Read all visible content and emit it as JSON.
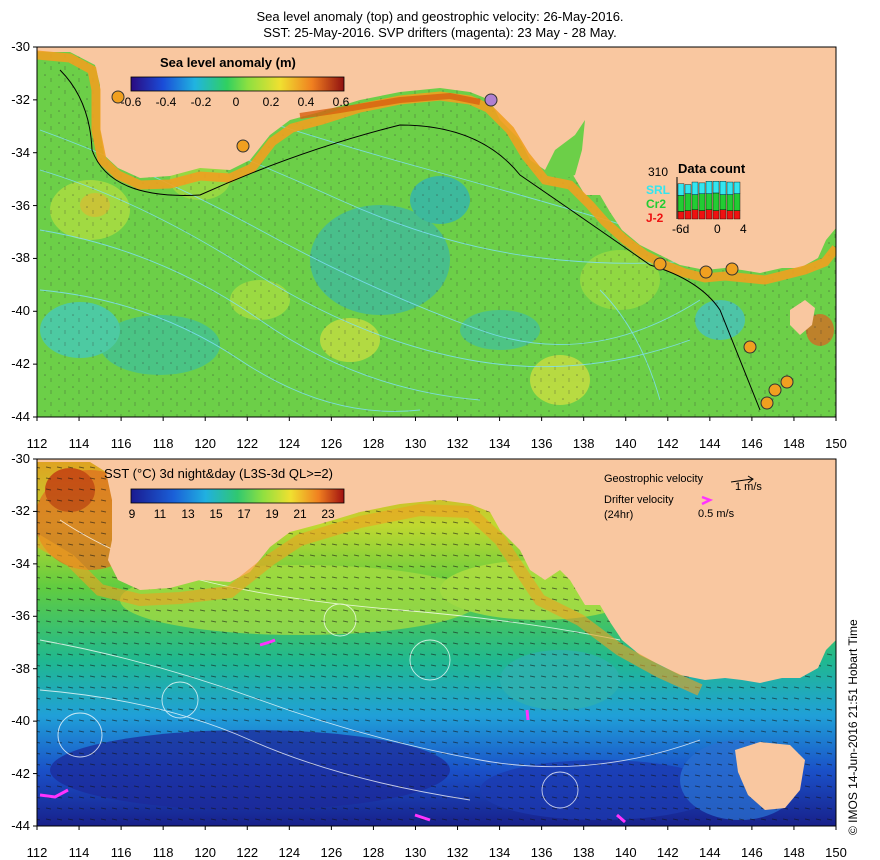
{
  "header": {
    "line1": "Sea level anomaly (top) and geostrophic velocity: 26-May-2016.",
    "line2": "SST: 25-May-2016. SVP drifters (magenta): 23 May - 28 May."
  },
  "colors": {
    "land": "#f9c7a0",
    "coast": "#000000",
    "drifter": "#ff33ff",
    "srl": "#33e6f0",
    "cr2": "#22cc33",
    "j2": "#ee1111"
  },
  "axes": {
    "lon_ticks": [
      "112",
      "114",
      "116",
      "118",
      "120",
      "122",
      "124",
      "126",
      "128",
      "130",
      "132",
      "134",
      "136",
      "138",
      "140",
      "142",
      "144",
      "146",
      "148",
      "150"
    ],
    "lat_ticks": [
      "-30",
      "-32",
      "-34",
      "-36",
      "-38",
      "-40",
      "-42",
      "-44"
    ]
  },
  "top_panel": {
    "colorbar_title": "Sea level anomaly (m)",
    "colorbar_ticks": [
      "-0.6",
      "-0.4",
      "-0.2",
      "0",
      "0.2",
      "0.4",
      "0.6"
    ]
  },
  "data_count": {
    "title": "Data count",
    "max_label": "310",
    "series": [
      "SRL",
      "Cr2",
      "J-2"
    ],
    "x_ticks": [
      "-6d",
      "0",
      "4"
    ]
  },
  "bottom_panel": {
    "colorbar_title": "SST (°C) 3d night&day (L3S-3d QL>=2)",
    "colorbar_ticks": [
      "9",
      "11",
      "13",
      "15",
      "17",
      "19",
      "21",
      "23"
    ],
    "geo_label": "Geostrophic velocity",
    "geo_scale": "1 m/s",
    "drifter_label": "Drifter velocity",
    "drifter_sub": "(24hr)",
    "drifter_scale": "0.5 m/s"
  },
  "credit": "© IMOS 14-Jun-2016 21:51 Hobart Time"
}
